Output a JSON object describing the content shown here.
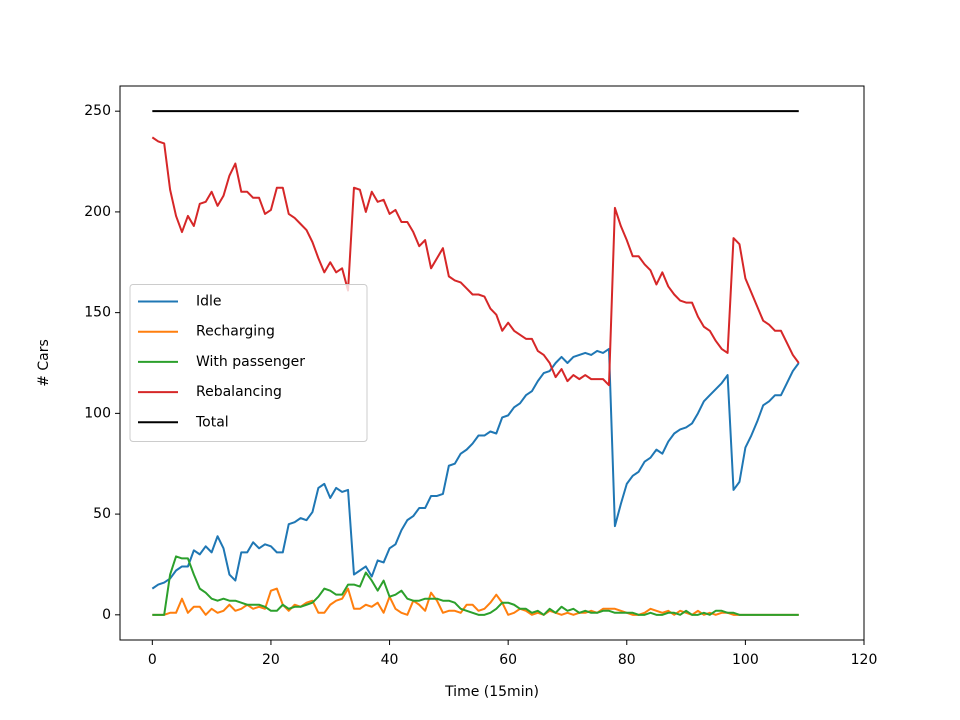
{
  "chart_data": {
    "type": "line",
    "x_label": "Time (15min)",
    "y_label": "# Cars",
    "x": [
      0,
      1,
      2,
      3,
      4,
      5,
      6,
      7,
      8,
      9,
      10,
      11,
      12,
      13,
      14,
      15,
      16,
      17,
      18,
      19,
      20,
      21,
      22,
      23,
      24,
      25,
      26,
      27,
      28,
      29,
      30,
      31,
      32,
      33,
      34,
      35,
      36,
      37,
      38,
      39,
      40,
      41,
      42,
      43,
      44,
      45,
      46,
      47,
      48,
      49,
      50,
      51,
      52,
      53,
      54,
      55,
      56,
      57,
      58,
      59,
      60,
      61,
      62,
      63,
      64,
      65,
      66,
      67,
      68,
      69,
      70,
      71,
      72,
      73,
      74,
      75,
      76,
      77,
      78,
      79,
      80,
      81,
      82,
      83,
      84,
      85,
      86,
      87,
      88,
      89,
      90,
      91,
      92,
      93,
      94,
      95,
      96,
      97,
      98,
      99,
      100,
      101,
      102,
      103,
      104,
      105,
      106,
      107,
      108,
      109
    ],
    "series": [
      {
        "name": "Idle",
        "color": "#1f77b4",
        "values": [
          13,
          15,
          16,
          18,
          22,
          24,
          24,
          32,
          30,
          34,
          31,
          39,
          33,
          20,
          17,
          31,
          31,
          36,
          33,
          35,
          34,
          31,
          31,
          45,
          46,
          48,
          47,
          51,
          63,
          65,
          58,
          63,
          61,
          62,
          20,
          22,
          24,
          19,
          27,
          26,
          33,
          35,
          42,
          47,
          49,
          53,
          53,
          59,
          59,
          60,
          74,
          75,
          80,
          82,
          85,
          89,
          89,
          91,
          90,
          98,
          99,
          103,
          105,
          109,
          111,
          116,
          120,
          121,
          125,
          128,
          125,
          128,
          129,
          130,
          129,
          131,
          130,
          132,
          44,
          55,
          65,
          69,
          71,
          76,
          78,
          82,
          80,
          86,
          90,
          92,
          93,
          95,
          100,
          106,
          109,
          112,
          115,
          119,
          62,
          66,
          83,
          89,
          96,
          104,
          106,
          109,
          109,
          115,
          121,
          125
        ]
      },
      {
        "name": "Recharging",
        "color": "#ff7f0e",
        "values": [
          0,
          0,
          0,
          1,
          1,
          8,
          1,
          4,
          4,
          0,
          3,
          1,
          2,
          5,
          2,
          3,
          5,
          3,
          4,
          3,
          12,
          13,
          5,
          2,
          5,
          4,
          6,
          7,
          1,
          1,
          5,
          7,
          8,
          13,
          3,
          3,
          5,
          4,
          6,
          1,
          9,
          3,
          1,
          0,
          7,
          5,
          2,
          11,
          7,
          1,
          2,
          2,
          1,
          5,
          5,
          2,
          3,
          6,
          10,
          6,
          0,
          1,
          3,
          2,
          0,
          1,
          0,
          2,
          1,
          0,
          1,
          0,
          1,
          1,
          2,
          1,
          3,
          3,
          3,
          2,
          1,
          0,
          0,
          1,
          3,
          2,
          1,
          2,
          0,
          2,
          1,
          0,
          2,
          0,
          1,
          0,
          1,
          1,
          0,
          0,
          0,
          0,
          0,
          0,
          0,
          0,
          0,
          0,
          0,
          0
        ]
      },
      {
        "name": "With passenger",
        "color": "#2ca02c",
        "values": [
          0,
          0,
          0,
          20,
          29,
          28,
          28,
          20,
          13,
          11,
          8,
          7,
          8,
          7,
          7,
          6,
          5,
          5,
          5,
          4,
          2,
          2,
          5,
          3,
          4,
          4,
          5,
          6,
          9,
          13,
          12,
          10,
          10,
          15,
          15,
          14,
          21,
          17,
          12,
          17,
          9,
          10,
          12,
          8,
          7,
          7,
          8,
          8,
          8,
          7,
          7,
          6,
          3,
          2,
          1,
          0,
          0,
          1,
          3,
          6,
          6,
          5,
          3,
          3,
          1,
          2,
          0,
          3,
          1,
          4,
          2,
          3,
          1,
          2,
          1,
          1,
          2,
          2,
          1,
          1,
          1,
          1,
          0,
          0,
          1,
          0,
          0,
          1,
          1,
          0,
          2,
          0,
          0,
          1,
          0,
          2,
          2,
          1,
          1,
          0,
          0,
          0,
          0,
          0,
          0,
          0,
          0,
          0,
          0,
          0
        ]
      },
      {
        "name": "Rebalancing",
        "color": "#d62728",
        "values": [
          237,
          235,
          234,
          211,
          198,
          190,
          198,
          193,
          204,
          205,
          210,
          203,
          208,
          218,
          224,
          210,
          210,
          207,
          207,
          199,
          201,
          212,
          212,
          199,
          197,
          194,
          191,
          185,
          177,
          170,
          175,
          170,
          172,
          161,
          212,
          211,
          200,
          210,
          205,
          206,
          199,
          201,
          195,
          195,
          190,
          183,
          186,
          172,
          177,
          182,
          168,
          166,
          165,
          162,
          159,
          159,
          158,
          152,
          149,
          141,
          145,
          141,
          139,
          137,
          137,
          131,
          129,
          125,
          118,
          122,
          116,
          119,
          117,
          119,
          117,
          117,
          117,
          114,
          202,
          193,
          186,
          178,
          178,
          174,
          171,
          164,
          170,
          163,
          159,
          156,
          155,
          155,
          148,
          143,
          141,
          136,
          132,
          130,
          187,
          184,
          167,
          160,
          153,
          146,
          144,
          141,
          141,
          135,
          129,
          125
        ]
      },
      {
        "name": "Total",
        "color": "#000000",
        "values": [
          250,
          250,
          250,
          250,
          250,
          250,
          250,
          250,
          250,
          250,
          250,
          250,
          250,
          250,
          250,
          250,
          250,
          250,
          250,
          250,
          250,
          250,
          250,
          250,
          250,
          250,
          250,
          250,
          250,
          250,
          250,
          250,
          250,
          250,
          250,
          250,
          250,
          250,
          250,
          250,
          250,
          250,
          250,
          250,
          250,
          250,
          250,
          250,
          250,
          250,
          250,
          250,
          250,
          250,
          250,
          250,
          250,
          250,
          250,
          250,
          250,
          250,
          250,
          250,
          250,
          250,
          250,
          250,
          250,
          250,
          250,
          250,
          250,
          250,
          250,
          250,
          250,
          250,
          250,
          250,
          250,
          250,
          250,
          250,
          250,
          250,
          250,
          250,
          250,
          250,
          250,
          250,
          250,
          250,
          250,
          250,
          250,
          250,
          250,
          250,
          250,
          250,
          250,
          250,
          250,
          250,
          250,
          250,
          250,
          250
        ]
      }
    ],
    "xlim": [
      -5.45,
      120
    ],
    "ylim": [
      -12.5,
      262.5
    ],
    "xticks": [
      0,
      20,
      40,
      60,
      80,
      100,
      120
    ],
    "yticks": [
      0,
      50,
      100,
      150,
      200,
      250
    ],
    "legend": "center left"
  }
}
